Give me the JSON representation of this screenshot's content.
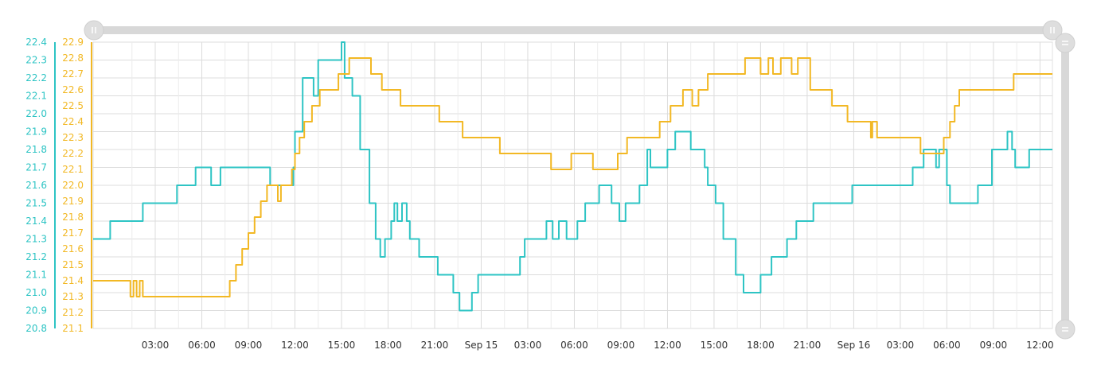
{
  "chart_data": {
    "type": "line",
    "x_tick_labels": [
      "03:00",
      "06:00",
      "09:00",
      "12:00",
      "15:00",
      "18:00",
      "21:00",
      "Sep 15",
      "03:00",
      "06:00",
      "09:00",
      "12:00",
      "15:00",
      "18:00",
      "21:00",
      "Sep 16",
      "03:00",
      "06:00",
      "09:00",
      "12:00"
    ],
    "y_axes": [
      {
        "side": "left-outer",
        "color": "#2ec4c4",
        "range": [
          20.8,
          22.4
        ],
        "ticks": [
          "22.4",
          "22.3",
          "22.2",
          "22.1",
          "22.0",
          "21.9",
          "21.8",
          "21.7",
          "21.6",
          "21.5",
          "21.4",
          "21.3",
          "21.2",
          "21.1",
          "21.0",
          "20.9",
          "20.8"
        ]
      },
      {
        "side": "left-inner",
        "color": "#f2b824",
        "range": [
          21.1,
          22.9
        ],
        "ticks": [
          "22.9",
          "22.8",
          "22.7",
          "22.6",
          "22.5",
          "22.4",
          "22.3",
          "22.2",
          "22.1",
          "22.0",
          "21.9",
          "21.8",
          "21.7",
          "21.6",
          "21.5",
          "21.4",
          "21.3",
          "21.2",
          "21.1"
        ]
      }
    ],
    "x_range_hours": [
      -1.0,
      60.8
    ],
    "grid": true,
    "series": [
      {
        "axis": 0,
        "color": "#2ec4c4",
        "x": [
          -1,
          0,
          0.1,
          2.1,
          2.2,
          4.3,
          4.4,
          5.5,
          5.6,
          6.6,
          6.8,
          7.0,
          7.2,
          8.0,
          8.2,
          10.3,
          10.4,
          11.4,
          11.9,
          12.0,
          12.5,
          12.7,
          13.2,
          13.5,
          13.8,
          15.0,
          15.2,
          15.7,
          16.2,
          16.8,
          17.2,
          17.5,
          17.8,
          18.2,
          18.4,
          18.6,
          18.9,
          19.2,
          19.4,
          20.0,
          20.3,
          21.2,
          21.4,
          22.2,
          22.6,
          23.4,
          23.8,
          24.4,
          25.4,
          26.5,
          26.8,
          27.5,
          28.0,
          28.2,
          28.6,
          29.0,
          29.5,
          30.2,
          30.7,
          31.3,
          31.6,
          31.8,
          32.4,
          32.9,
          33.3,
          34.2,
          34.7,
          34.9,
          35.2,
          36.0,
          36.5,
          37.0,
          37.5,
          38.4,
          38.6,
          39.1,
          39.6,
          40.4,
          40.9,
          41.3,
          42.0,
          42.7,
          43.7,
          44.3,
          44.6,
          45.4,
          46.2,
          47.2,
          47.4,
          47.9,
          48.3,
          49.2,
          50.1,
          51.0,
          51.8,
          52.4,
          52.5,
          53.3,
          53.5,
          54.0,
          54.2,
          54.6,
          56.0,
          56.9,
          57.3,
          57.9,
          58.2,
          58.4,
          59.0,
          59.3,
          59.5,
          60.1,
          60.5,
          60.8
        ],
        "y": [
          21.3,
          21.3,
          21.4,
          21.4,
          21.5,
          21.5,
          21.6,
          21.6,
          21.7,
          21.6,
          21.6,
          21.6,
          21.7,
          21.7,
          21.7,
          21.7,
          21.6,
          21.6,
          21.7,
          21.9,
          22.2,
          22.2,
          22.1,
          22.3,
          22.3,
          22.4,
          22.2,
          22.1,
          21.8,
          21.5,
          21.3,
          21.2,
          21.3,
          21.4,
          21.5,
          21.4,
          21.5,
          21.4,
          21.3,
          21.2,
          21.2,
          21.1,
          21.1,
          21.0,
          20.9,
          21.0,
          21.1,
          21.1,
          21.1,
          21.2,
          21.3,
          21.3,
          21.3,
          21.4,
          21.3,
          21.4,
          21.3,
          21.4,
          21.5,
          21.5,
          21.6,
          21.6,
          21.5,
          21.4,
          21.5,
          21.6,
          21.8,
          21.7,
          21.7,
          21.8,
          21.9,
          21.9,
          21.8,
          21.7,
          21.6,
          21.5,
          21.3,
          21.1,
          21.0,
          21.0,
          21.1,
          21.2,
          21.3,
          21.4,
          21.4,
          21.5,
          21.5,
          21.5,
          21.5,
          21.6,
          21.6,
          21.6,
          21.6,
          21.6,
          21.7,
          21.7,
          21.8,
          21.7,
          21.8,
          21.6,
          21.5,
          21.5,
          21.6,
          21.8,
          21.8,
          21.9,
          21.8,
          21.7,
          21.7,
          21.8,
          21.8,
          21.8,
          21.8,
          21.8
        ]
      },
      {
        "axis": 1,
        "color": "#f2b824",
        "x": [
          -1,
          1.2,
          1.4,
          1.6,
          1.8,
          2.0,
          2.2,
          4.3,
          7.5,
          7.8,
          8.2,
          8.6,
          9.0,
          9.4,
          9.8,
          10.2,
          10.6,
          10.9,
          11.1,
          11.3,
          11.5,
          11.8,
          12.0,
          12.3,
          12.6,
          13.1,
          13.6,
          14.1,
          14.8,
          15.5,
          16.2,
          16.9,
          17.6,
          18.2,
          18.8,
          20.1,
          21.3,
          21.8,
          22.8,
          24.2,
          25.2,
          26.4,
          27.3,
          28.5,
          29.8,
          31.2,
          32.0,
          32.8,
          33.4,
          34.6,
          35.5,
          36.2,
          37.0,
          37.6,
          38.0,
          38.4,
          38.6,
          39.0,
          40.3,
          41.0,
          42.0,
          42.5,
          42.8,
          43.3,
          44.0,
          44.4,
          45.2,
          46.6,
          47.6,
          48.8,
          49.1,
          49.2,
          49.5,
          50.9,
          52.3,
          53.3,
          53.8,
          54.2,
          54.5,
          54.8,
          55.3,
          56.0,
          57.2,
          58.3,
          59.5,
          60.3,
          60.8
        ],
        "y": [
          21.4,
          21.4,
          21.3,
          21.4,
          21.3,
          21.4,
          21.3,
          21.3,
          21.3,
          21.4,
          21.5,
          21.6,
          21.7,
          21.8,
          21.9,
          22.0,
          22.0,
          21.9,
          22.0,
          22.0,
          22.0,
          22.1,
          22.2,
          22.3,
          22.4,
          22.5,
          22.6,
          22.6,
          22.7,
          22.8,
          22.8,
          22.7,
          22.6,
          22.6,
          22.5,
          22.5,
          22.4,
          22.4,
          22.3,
          22.3,
          22.2,
          22.2,
          22.2,
          22.1,
          22.2,
          22.1,
          22.1,
          22.2,
          22.3,
          22.3,
          22.4,
          22.5,
          22.6,
          22.5,
          22.6,
          22.6,
          22.7,
          22.7,
          22.7,
          22.8,
          22.7,
          22.8,
          22.7,
          22.8,
          22.7,
          22.8,
          22.6,
          22.5,
          22.4,
          22.4,
          22.3,
          22.4,
          22.3,
          22.3,
          22.2,
          22.2,
          22.3,
          22.4,
          22.5,
          22.6,
          22.6,
          22.6,
          22.6,
          22.7,
          22.7,
          22.7,
          22.7
        ]
      }
    ]
  }
}
